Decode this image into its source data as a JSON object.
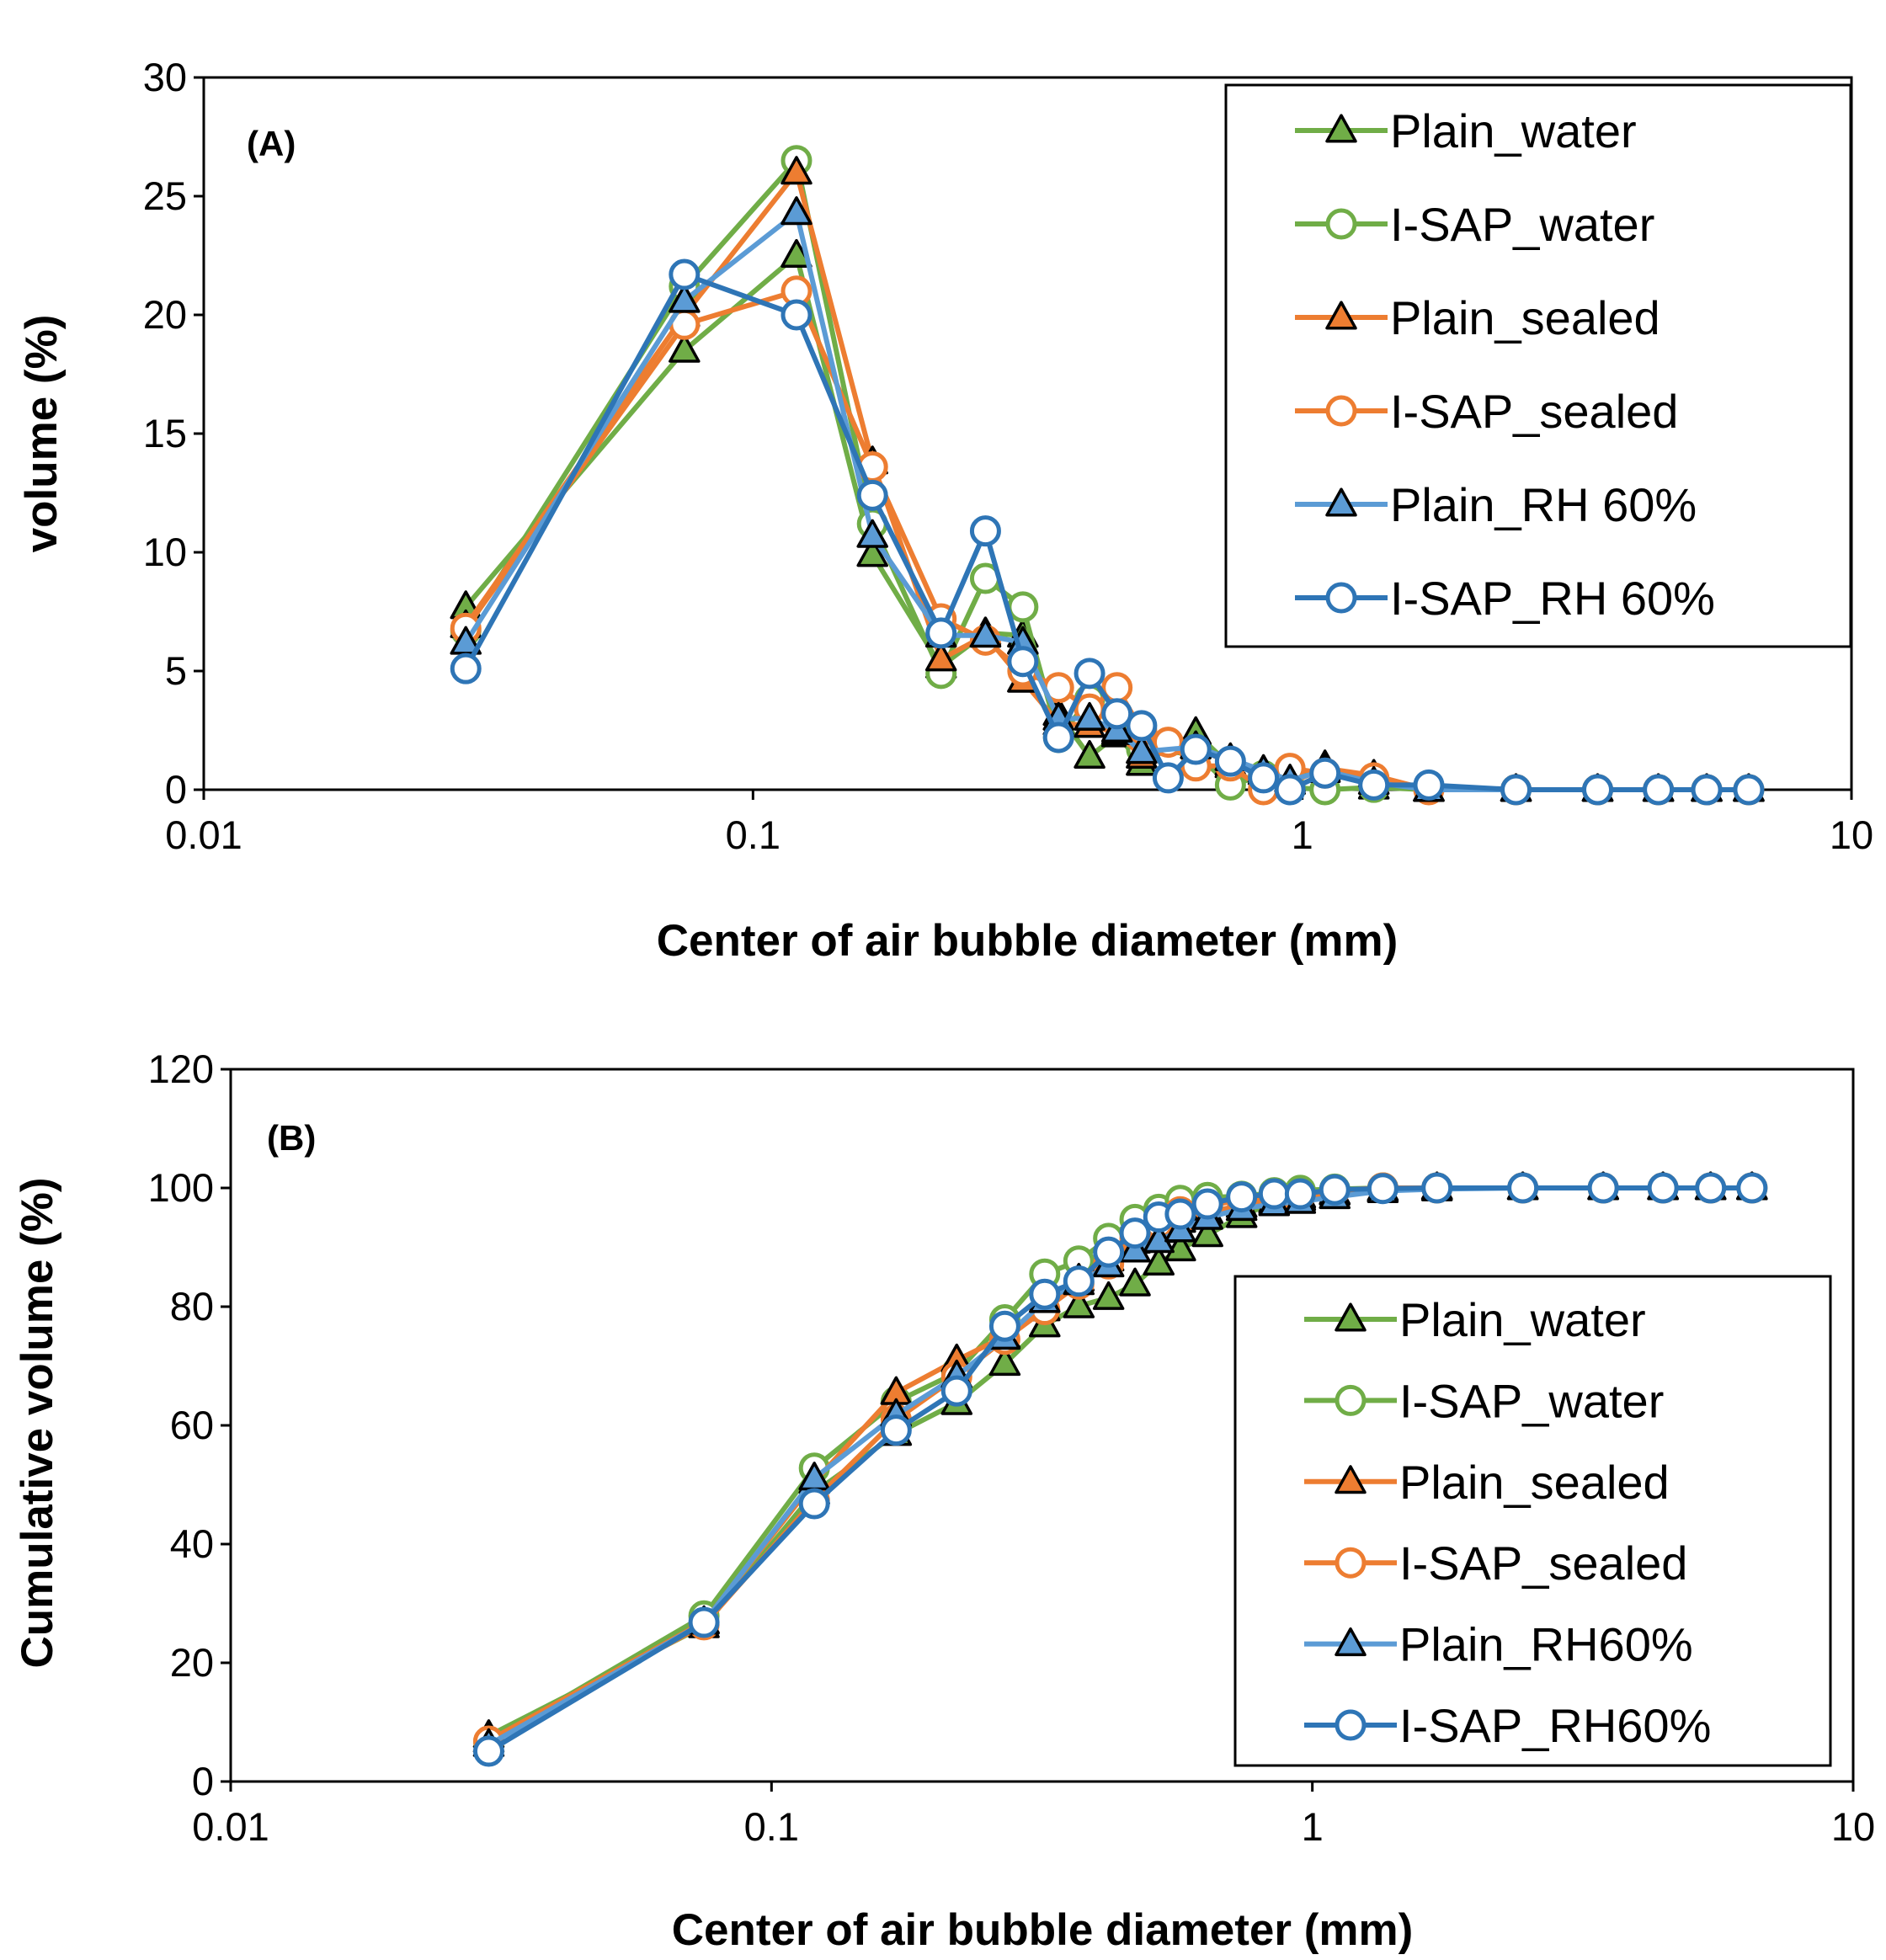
{
  "chart_data": [
    {
      "type": "line",
      "panel_label": "(A)",
      "title": "",
      "xlabel": "Center of air bubble diameter (mm)",
      "ylabel": "volume (%)",
      "xscale": "log",
      "xlim": [
        0.01,
        10
      ],
      "ylim": [
        0,
        30
      ],
      "x_ticks": [
        0.01,
        0.1,
        1,
        10
      ],
      "x_tick_labels": [
        "0.01",
        "0.1",
        "1",
        "10"
      ],
      "y_ticks": [
        0,
        5,
        10,
        15,
        20,
        25,
        30
      ],
      "y_tick_labels": [
        "0",
        "5",
        "10",
        "15",
        "20",
        "25",
        "30"
      ],
      "grid": false,
      "legend_position": "top-right",
      "series": [
        {
          "name": "Plain_water",
          "color": "#70ad47",
          "marker": "triangle",
          "x": [
            0.03,
            0.075,
            0.12,
            0.165,
            0.22,
            0.265,
            0.31,
            0.36,
            0.41,
            0.46,
            0.51,
            0.64,
            0.74,
            0.85,
            0.95,
            1.1,
            1.35,
            1.7,
            2.45,
            3.45,
            4.45,
            5.45,
            6.5
          ],
          "values": [
            7.7,
            18.5,
            22.5,
            9.9,
            5.2,
            6.6,
            6.5,
            3.2,
            1.4,
            2.3,
            1.1,
            2.4,
            1.0,
            0.8,
            0.3,
            1.0,
            0.1,
            0.0,
            0.0,
            0.0,
            0.0,
            0.0,
            0.0
          ]
        },
        {
          "name": "I-SAP_water",
          "color": "#70ad47",
          "marker": "circle",
          "x": [
            0.03,
            0.075,
            0.12,
            0.165,
            0.22,
            0.265,
            0.31,
            0.36,
            0.41,
            0.46,
            0.51,
            0.64,
            0.74,
            0.85,
            0.95,
            1.1,
            1.35,
            1.7,
            2.45,
            3.45,
            4.45,
            5.45,
            6.5
          ],
          "values": [
            6.7,
            21.2,
            26.5,
            11.2,
            4.9,
            8.9,
            7.7,
            2.2,
            3.8,
            3.2,
            1.7,
            1.5,
            0.2,
            0.6,
            0.1,
            0.0,
            0.1,
            0.1,
            0.0,
            0.0,
            0.0,
            0.0,
            0.0
          ]
        },
        {
          "name": "Plain_sealed",
          "color": "#ed7d31",
          "marker": "triangle",
          "x": [
            0.03,
            0.075,
            0.12,
            0.165,
            0.22,
            0.265,
            0.31,
            0.36,
            0.41,
            0.46,
            0.51,
            0.64,
            0.74,
            0.85,
            0.95,
            1.1,
            1.35,
            1.7,
            2.45,
            3.45,
            4.45,
            5.45,
            6.5
          ],
          "values": [
            6.9,
            20.0,
            26.0,
            13.8,
            5.5,
            6.5,
            4.6,
            2.8,
            2.7,
            2.4,
            1.4,
            1.8,
            1.1,
            0.7,
            0.3,
            0.9,
            0.6,
            0.0,
            0.0,
            0.0,
            0.0,
            0.0,
            0.0
          ]
        },
        {
          "name": "I-SAP_sealed",
          "color": "#ed7d31",
          "marker": "circle",
          "x": [
            0.03,
            0.075,
            0.12,
            0.165,
            0.22,
            0.265,
            0.31,
            0.36,
            0.41,
            0.46,
            0.51,
            0.57,
            0.64,
            0.74,
            0.85,
            0.95,
            1.1,
            1.35,
            1.7,
            2.45,
            3.45,
            4.45,
            5.45,
            6.5
          ],
          "values": [
            6.8,
            19.6,
            21.0,
            13.6,
            7.2,
            6.3,
            5.0,
            4.3,
            3.4,
            4.3,
            2.5,
            2.0,
            1.0,
            1.0,
            0.0,
            0.9,
            0.7,
            0.5,
            0.0,
            0.0,
            0.0,
            0.0,
            0.0,
            0.0
          ]
        },
        {
          "name": "Plain_RH 60%",
          "color": "#5b9bd5",
          "marker": "triangle",
          "x": [
            0.03,
            0.075,
            0.12,
            0.165,
            0.22,
            0.265,
            0.31,
            0.36,
            0.41,
            0.46,
            0.51,
            0.64,
            0.74,
            0.85,
            0.95,
            1.1,
            1.35,
            1.7,
            2.45,
            3.45,
            4.45,
            5.45,
            6.5
          ],
          "values": [
            6.2,
            20.6,
            24.3,
            10.7,
            6.5,
            6.5,
            6.2,
            3.0,
            3.0,
            2.5,
            1.6,
            1.8,
            1.3,
            0.8,
            0.4,
            0.8,
            0.3,
            0.0,
            0.0,
            0.0,
            0.0,
            0.0,
            0.0
          ]
        },
        {
          "name": "I-SAP_RH 60%",
          "color": "#2e75b6",
          "marker": "circle",
          "x": [
            0.03,
            0.075,
            0.12,
            0.165,
            0.22,
            0.265,
            0.31,
            0.36,
            0.41,
            0.46,
            0.51,
            0.57,
            0.64,
            0.74,
            0.85,
            0.95,
            1.1,
            1.35,
            1.7,
            2.45,
            3.45,
            4.45,
            5.45,
            6.5
          ],
          "values": [
            5.1,
            21.7,
            20.0,
            12.4,
            6.6,
            10.9,
            5.4,
            2.2,
            4.9,
            3.2,
            2.7,
            0.5,
            1.7,
            1.2,
            0.5,
            0.0,
            0.7,
            0.2,
            0.2,
            0.0,
            0.0,
            0.0,
            0.0,
            0.0
          ]
        }
      ]
    },
    {
      "type": "line",
      "panel_label": "(B)",
      "title": "",
      "xlabel": "Center of air bubble diameter (mm)",
      "ylabel": "Cumulative volume (%)",
      "xscale": "log",
      "xlim": [
        0.01,
        10
      ],
      "ylim": [
        0,
        120
      ],
      "x_ticks": [
        0.01,
        0.1,
        1,
        10
      ],
      "x_tick_labels": [
        "0.01",
        "0.1",
        "1",
        "10"
      ],
      "y_ticks": [
        0,
        20,
        40,
        60,
        80,
        100,
        120
      ],
      "y_tick_labels": [
        "0",
        "20",
        "40",
        "60",
        "80",
        "100",
        "120"
      ],
      "grid": false,
      "legend_position": "bottom-right",
      "series": [
        {
          "name": "Plain_water",
          "color": "#70ad47",
          "marker": "triangle",
          "x": [
            0.03,
            0.075,
            0.12,
            0.17,
            0.22,
            0.27,
            0.32,
            0.37,
            0.42,
            0.47,
            0.52,
            0.57,
            0.64,
            0.74,
            0.85,
            0.95,
            1.1,
            1.35,
            1.7,
            2.45,
            3.45,
            4.45,
            5.45,
            6.5
          ],
          "values": [
            7.7,
            26.2,
            48.7,
            58.6,
            63.8,
            70.4,
            76.9,
            80.1,
            81.5,
            83.8,
            87.3,
            89.7,
            92.1,
            95.3,
            97.6,
            98.6,
            99.2,
            99.8,
            100.0,
            100.0,
            100.0,
            100.0,
            100.0,
            100.0
          ]
        },
        {
          "name": "I-SAP_water",
          "color": "#70ad47",
          "marker": "circle",
          "x": [
            0.03,
            0.075,
            0.12,
            0.17,
            0.22,
            0.27,
            0.32,
            0.37,
            0.42,
            0.47,
            0.52,
            0.57,
            0.64,
            0.74,
            0.85,
            0.95,
            1.1,
            1.35,
            1.7,
            2.45,
            3.45,
            4.45,
            5.45,
            6.5
          ],
          "values": [
            6.7,
            27.9,
            52.8,
            64.0,
            68.9,
            77.8,
            85.5,
            87.7,
            91.5,
            94.7,
            96.4,
            97.9,
            98.4,
            98.6,
            99.2,
            99.6,
            99.8,
            100.0,
            100.0,
            100.0,
            100.0,
            100.0,
            100.0,
            100.0
          ]
        },
        {
          "name": "Plain_sealed",
          "color": "#ed7d31",
          "marker": "triangle",
          "x": [
            0.03,
            0.075,
            0.12,
            0.17,
            0.22,
            0.27,
            0.32,
            0.37,
            0.42,
            0.47,
            0.52,
            0.57,
            0.64,
            0.74,
            0.85,
            0.95,
            1.1,
            1.35,
            1.7,
            2.45,
            3.45,
            4.45,
            5.45,
            6.5
          ],
          "values": [
            6.9,
            26.9,
            50.5,
            65.5,
            71.0,
            75.0,
            79.6,
            84.6,
            88.0,
            91.0,
            92.8,
            94.5,
            96.0,
            97.0,
            97.8,
            98.2,
            99.1,
            99.7,
            100.0,
            100.0,
            100.0,
            100.0,
            100.0,
            100.0
          ]
        },
        {
          "name": "I-SAP_sealed",
          "color": "#ed7d31",
          "marker": "circle",
          "x": [
            0.03,
            0.075,
            0.12,
            0.17,
            0.22,
            0.27,
            0.32,
            0.37,
            0.42,
            0.47,
            0.52,
            0.57,
            0.64,
            0.74,
            0.85,
            0.95,
            1.1,
            1.35,
            1.7,
            2.45,
            3.45,
            4.45,
            5.45,
            6.5
          ],
          "values": [
            6.8,
            26.4,
            47.4,
            61.0,
            68.2,
            74.5,
            79.5,
            83.8,
            87.2,
            91.5,
            94.0,
            96.0,
            97.0,
            98.0,
            98.0,
            98.9,
            99.6,
            100.0,
            100.0,
            100.0,
            100.0,
            100.0,
            100.0,
            100.0
          ]
        },
        {
          "name": "Plain_RH60%",
          "color": "#5b9bd5",
          "marker": "triangle",
          "x": [
            0.03,
            0.075,
            0.12,
            0.17,
            0.22,
            0.27,
            0.32,
            0.37,
            0.42,
            0.47,
            0.52,
            0.57,
            0.64,
            0.74,
            0.85,
            0.95,
            1.1,
            1.35,
            1.7,
            2.45,
            3.45,
            4.45,
            5.45,
            6.5
          ],
          "values": [
            6.2,
            26.8,
            51.1,
            61.8,
            68.3,
            74.8,
            81.0,
            84.0,
            87.0,
            89.5,
            91.1,
            92.9,
            95.0,
            96.5,
            97.3,
            97.7,
            98.5,
            99.5,
            99.8,
            100.0,
            100.0,
            100.0,
            100.0,
            100.0
          ]
        },
        {
          "name": "I-SAP_RH60%",
          "color": "#2e75b6",
          "marker": "circle",
          "x": [
            0.03,
            0.075,
            0.12,
            0.17,
            0.22,
            0.27,
            0.32,
            0.37,
            0.42,
            0.47,
            0.52,
            0.57,
            0.64,
            0.74,
            0.85,
            0.95,
            1.1,
            1.35,
            1.7,
            2.45,
            3.45,
            4.45,
            5.45,
            6.5
          ],
          "values": [
            5.1,
            26.8,
            46.8,
            59.2,
            65.8,
            76.7,
            82.1,
            84.3,
            89.2,
            92.4,
            95.1,
            95.6,
            97.3,
            98.5,
            99.0,
            99.0,
            99.7,
            99.9,
            100.0,
            100.0,
            100.0,
            100.0,
            100.0,
            100.0
          ]
        }
      ]
    }
  ]
}
